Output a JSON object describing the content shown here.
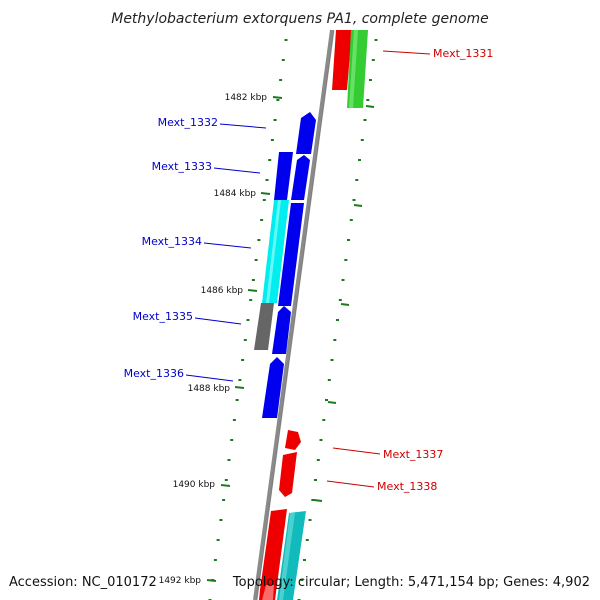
{
  "title": "Methylobacterium extorquens PA1, complete genome",
  "footer": {
    "accession": "Accession: NC_010172",
    "topology": "Topology: circular; Length: 5,471,154 bp; Genes: 4,902"
  },
  "colors": {
    "backbone": "#8a8a8a",
    "ticks": "#1f7a1f",
    "forward_label": "#0000cc",
    "reverse_label": "#cc0000",
    "gene_blue": "#0000ee",
    "gene_cyan": "#00eeee",
    "gene_gray": "#666666",
    "gene_red": "#ee0000",
    "gene_green": "#33cc33",
    "gene_teal": "#11bbbb"
  },
  "kbp_ticks": [
    "1482 kbp",
    "1484 kbp",
    "1486 kbp",
    "1488 kbp",
    "1490 kbp",
    "1492 kbp"
  ],
  "genes": [
    {
      "label": "Mext_1331",
      "strand": "reverse",
      "color": "red"
    },
    {
      "label": "Mext_1332",
      "strand": "forward",
      "color": "blue"
    },
    {
      "label": "Mext_1333",
      "strand": "forward",
      "color": "blue"
    },
    {
      "label": "Mext_1334",
      "strand": "forward",
      "color": "blue"
    },
    {
      "label": "Mext_1335",
      "strand": "forward",
      "color": "blue"
    },
    {
      "label": "Mext_1336",
      "strand": "forward",
      "color": "blue"
    },
    {
      "label": "Mext_1337",
      "strand": "reverse",
      "color": "red"
    },
    {
      "label": "Mext_1338",
      "strand": "reverse",
      "color": "red"
    }
  ]
}
